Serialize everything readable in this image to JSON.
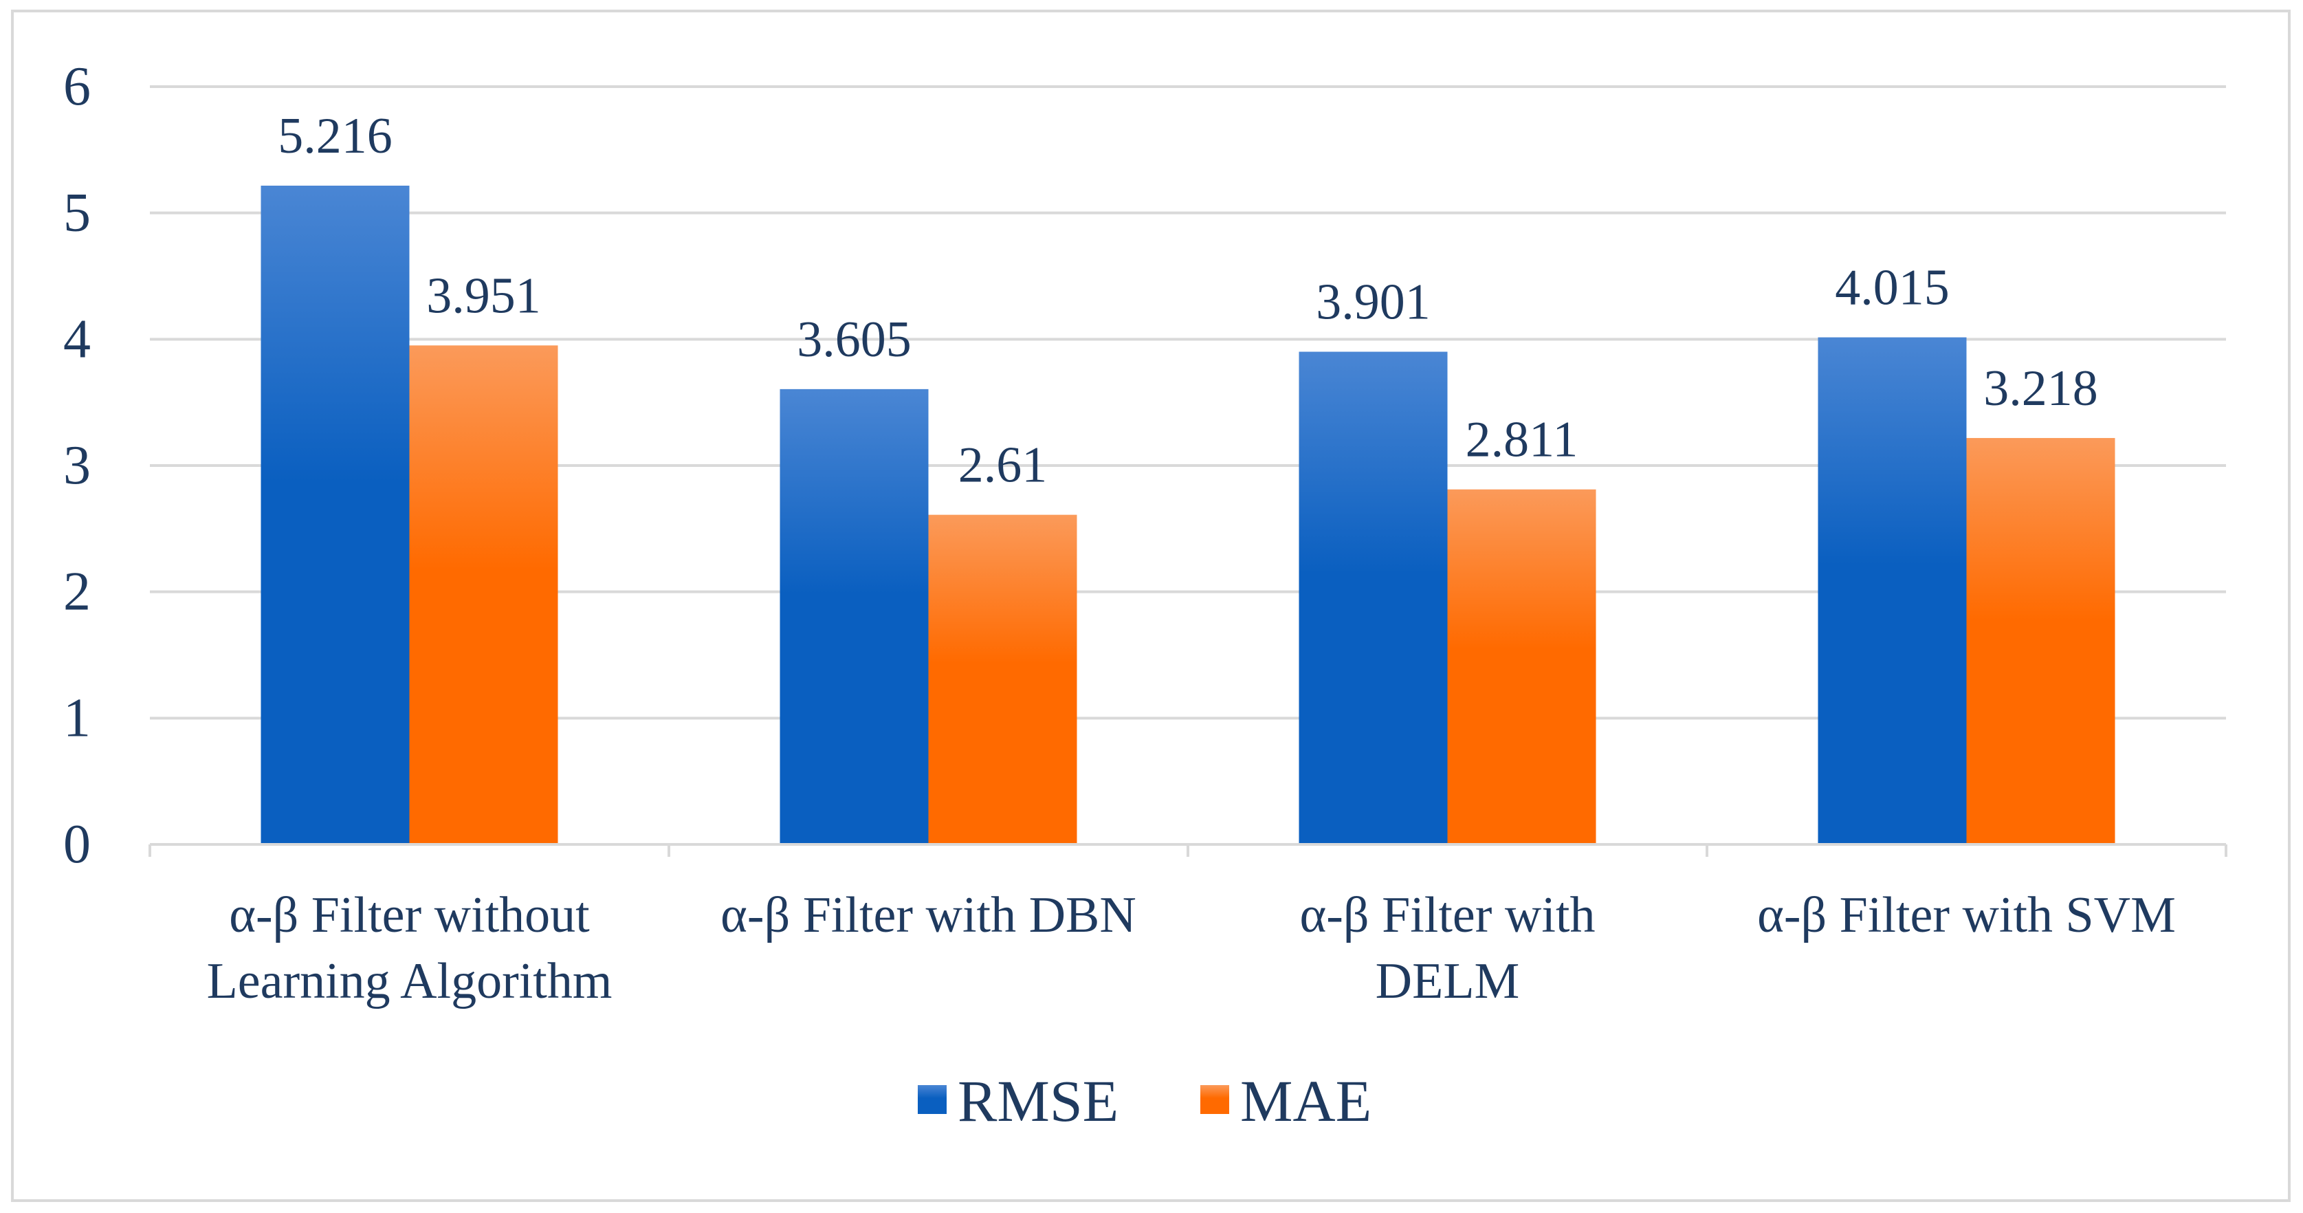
{
  "chart_data": {
    "type": "bar",
    "title": "",
    "xlabel": "",
    "ylabel": "",
    "ylim": [
      0,
      6
    ],
    "yticks": [
      0,
      1,
      2,
      3,
      4,
      5,
      6
    ],
    "grid": true,
    "legend_position": "bottom",
    "categories": [
      [
        "α-β Filter without",
        "Learning Algorithm"
      ],
      [
        "α-β Filter with DBN"
      ],
      [
        "α-β Filter with",
        "DELM"
      ],
      [
        "α-β Filter with SVM"
      ]
    ],
    "series": [
      {
        "name": "RMSE",
        "values": [
          5.216,
          3.605,
          3.901,
          4.015
        ],
        "labels": [
          "5.216",
          "3.605",
          "3.901",
          "4.015"
        ],
        "color_top": "#4a86d4",
        "color_bottom": "#0a5fc0"
      },
      {
        "name": "MAE",
        "values": [
          3.951,
          2.61,
          2.811,
          3.218
        ],
        "labels": [
          "3.951",
          "2.61",
          "2.811",
          "3.218"
        ],
        "color_top": "#fb9a5a",
        "color_bottom": "#ff6a00"
      }
    ],
    "colors": {
      "gridline": "#d9d9d9",
      "axis": "#d9d9d9",
      "text": "#1f3a5f"
    }
  }
}
